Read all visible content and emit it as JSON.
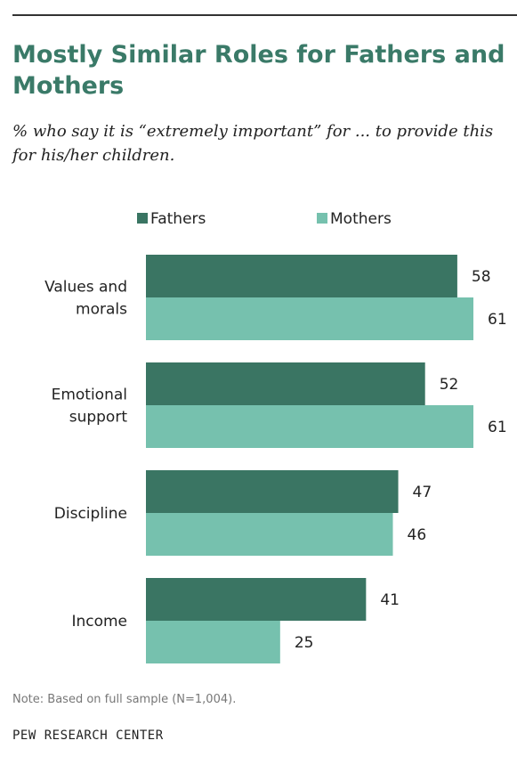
{
  "header": {
    "title": "Mostly Similar Roles for Fathers and Mothers",
    "subtitle": "% who say it is “extremely important” for ... to provide this for his/her children."
  },
  "colors": {
    "fathers": "#3a7563",
    "mothers": "#76c1ae"
  },
  "chart_data": {
    "type": "bar",
    "orientation": "horizontal",
    "title": "Mostly Similar Roles for Fathers and Mothers",
    "subtitle": "% who say it is “extremely important” for ... to provide this for his/her children.",
    "categories": [
      [
        "Values and",
        "morals"
      ],
      [
        "Emotional",
        "support"
      ],
      [
        "Discipline"
      ],
      [
        "Income"
      ]
    ],
    "series": [
      {
        "name": "Fathers",
        "values": [
          58,
          52,
          47,
          41
        ]
      },
      {
        "name": "Mothers",
        "values": [
          61,
          61,
          46,
          25
        ]
      }
    ],
    "xlim": [
      0,
      61
    ],
    "grid": false,
    "legend": "top"
  },
  "footer": {
    "note": "Note: Based on full sample (N=1,004).",
    "source": "PEW RESEARCH CENTER"
  }
}
